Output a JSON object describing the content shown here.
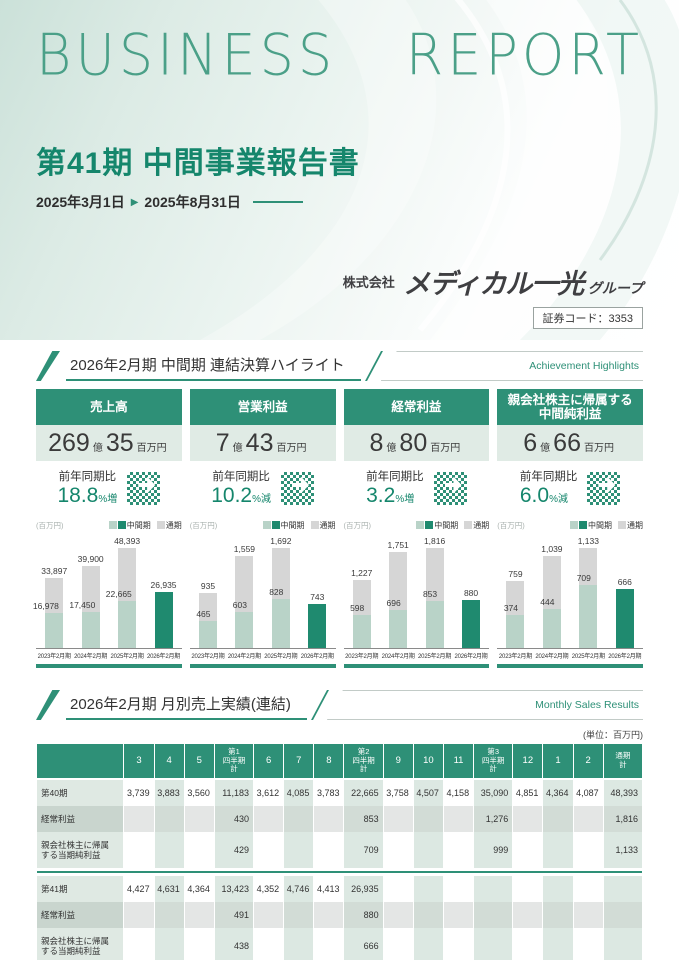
{
  "colors": {
    "teal": "#2E9077",
    "teal_dark": "#15866C",
    "report": "#4BA088",
    "bar_light": "#B9D3C8",
    "bar_gray": "#D6D6D6",
    "bar_current": "#1F8A6F",
    "card_value_bg": "#E0EBE5",
    "stripe": "#DCE8E2",
    "gray_row": "#E4E6E5",
    "gray_row_stripe": "#D2DCD6",
    "label_bg": "#DFE9E3",
    "label_bg_gray": "#C9D5CE"
  },
  "header": {
    "word1": "BUSINESS",
    "word2": "REPORT",
    "report_title": "第41期 中間事業報告書",
    "date_start": "2025年3月1日",
    "date_arrow": "▶",
    "date_end": "2025年8月31日",
    "company_prefix": "株式会社",
    "company_name": "メディカル一光",
    "company_suffix": "グループ",
    "securities_code": "証券コード：3353"
  },
  "highlights": {
    "title": "2026年2月期 中間期 連結決算ハイライト",
    "title_en": "Achievement Highlights",
    "units": {
      "oku": "億",
      "man": "百万円",
      "yoy_label": "前年同期比",
      "pct": "%"
    },
    "cards": [
      {
        "title": "売上高",
        "oku": "269",
        "man": "35",
        "yoy": "18.8",
        "dir": "増"
      },
      {
        "title": "営業利益",
        "oku": "7",
        "man": "43",
        "yoy": "10.2",
        "dir": "減"
      },
      {
        "title": "経常利益",
        "oku": "8",
        "man": "80",
        "yoy": "3.2",
        "dir": "増"
      },
      {
        "title": "親会社株主に帰属する\n中間純利益",
        "oku": "6",
        "man": "66",
        "yoy": "6.0",
        "dir": "減"
      }
    ]
  },
  "charts_meta": {
    "unit_label": "(百万円)",
    "legend_interim": "中間期",
    "legend_full": "通期",
    "categories": [
      "2023年2月期",
      "2024年2月期",
      "2025年2月期",
      "2026年2月期"
    ]
  },
  "chart_data": [
    {
      "type": "bar",
      "title": "売上高",
      "categories": [
        "2023年2月期",
        "2024年2月期",
        "2025年2月期",
        "2026年2月期"
      ],
      "series": [
        {
          "name": "中間期",
          "values": [
            16978,
            17450,
            22665,
            26935
          ]
        },
        {
          "name": "通期",
          "values": [
            33897,
            39900,
            48393,
            null
          ]
        }
      ],
      "ylabel": "百万円"
    },
    {
      "type": "bar",
      "title": "営業利益",
      "categories": [
        "2023年2月期",
        "2024年2月期",
        "2025年2月期",
        "2026年2月期"
      ],
      "series": [
        {
          "name": "中間期",
          "values": [
            465,
            603,
            828,
            743
          ]
        },
        {
          "name": "通期",
          "values": [
            935,
            1559,
            1692,
            null
          ]
        }
      ],
      "ylabel": "百万円"
    },
    {
      "type": "bar",
      "title": "経常利益",
      "categories": [
        "2023年2月期",
        "2024年2月期",
        "2025年2月期",
        "2026年2月期"
      ],
      "series": [
        {
          "name": "中間期",
          "values": [
            598,
            696,
            853,
            880
          ]
        },
        {
          "name": "通期",
          "values": [
            1227,
            1751,
            1816,
            null
          ]
        }
      ],
      "ylabel": "百万円"
    },
    {
      "type": "bar",
      "title": "親会社株主に帰属する中間純利益",
      "categories": [
        "2023年2月期",
        "2024年2月期",
        "2025年2月期",
        "2026年2月期"
      ],
      "series": [
        {
          "name": "中間期",
          "values": [
            374,
            444,
            709,
            666
          ]
        },
        {
          "name": "通期",
          "values": [
            759,
            1039,
            1133,
            null
          ]
        }
      ],
      "ylabel": "百万円"
    }
  ],
  "sales_table": {
    "title": "2026年2月期 月別売上実績(連結)",
    "title_en": "Monthly Sales Results",
    "unit_note": "(単位：百万円)",
    "columns": [
      "",
      "3",
      "4",
      "5",
      "第1\n四半期\n計",
      "6",
      "7",
      "8",
      "第2\n四半期\n計",
      "9",
      "10",
      "11",
      "第3\n四半期\n計",
      "12",
      "1",
      "2",
      "通期\n計"
    ],
    "groups": [
      {
        "rows": [
          {
            "label": "第40期",
            "type": "sales",
            "values": [
              "3,739",
              "3,883",
              "3,560",
              "11,183",
              "3,612",
              "4,085",
              "3,783",
              "22,665",
              "3,758",
              "4,507",
              "4,158",
              "35,090",
              "4,851",
              "4,364",
              "4,087",
              "48,393"
            ]
          },
          {
            "label": "経常利益",
            "type": "gray",
            "values": [
              "",
              "",
              "",
              "430",
              "",
              "",
              "",
              "853",
              "",
              "",
              "",
              "1,276",
              "",
              "",
              "",
              "1,816"
            ]
          },
          {
            "label": "親会社株主に帰属\nする当期純利益",
            "type": "sales tall",
            "values": [
              "",
              "",
              "",
              "429",
              "",
              "",
              "",
              "709",
              "",
              "",
              "",
              "999",
              "",
              "",
              "",
              "1,133"
            ]
          }
        ]
      },
      {
        "rows": [
          {
            "label": "第41期",
            "type": "sales",
            "values": [
              "4,427",
              "4,631",
              "4,364",
              "13,423",
              "4,352",
              "4,746",
              "4,413",
              "26,935",
              "",
              "",
              "",
              "",
              "",
              "",
              "",
              ""
            ]
          },
          {
            "label": "経常利益",
            "type": "gray",
            "values": [
              "",
              "",
              "",
              "491",
              "",
              "",
              "",
              "880",
              "",
              "",
              "",
              "",
              "",
              "",
              "",
              ""
            ]
          },
          {
            "label": "親会社株主に帰属\nする当期純利益",
            "type": "sales tall",
            "values": [
              "",
              "",
              "",
              "438",
              "",
              "",
              "",
              "666",
              "",
              "",
              "",
              "",
              "",
              "",
              "",
              ""
            ]
          }
        ]
      }
    ]
  }
}
